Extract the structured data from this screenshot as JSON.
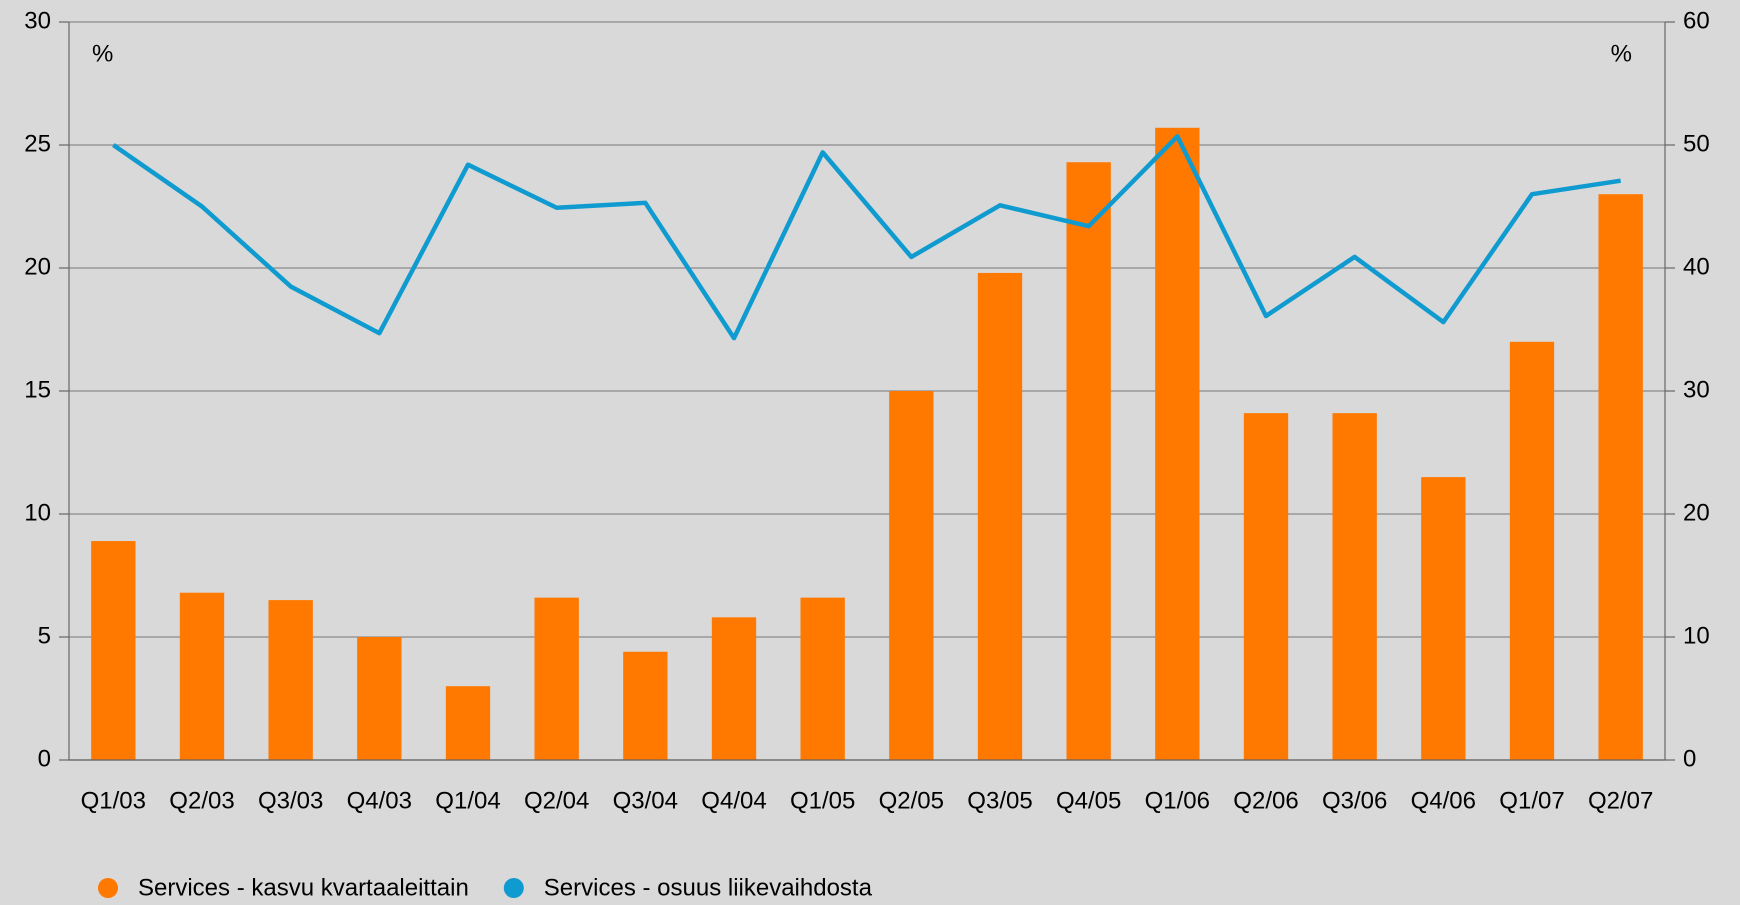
{
  "chart_data": {
    "type": "bar_line",
    "categories": [
      "Q1/03",
      "Q2/03",
      "Q3/03",
      "Q4/03",
      "Q1/04",
      "Q2/04",
      "Q3/04",
      "Q4/04",
      "Q1/05",
      "Q2/05",
      "Q3/05",
      "Q4/05",
      "Q1/06",
      "Q2/06",
      "Q3/06",
      "Q4/06",
      "Q1/07",
      "Q2/07"
    ],
    "series": [
      {
        "name": "Services - kasvu kvartaaleittain",
        "color": "#ff7800",
        "type": "bar",
        "values": [
          8.9,
          6.8,
          6.5,
          5.0,
          3.0,
          6.6,
          4.4,
          5.8,
          6.6,
          15.0,
          19.8,
          24.3,
          25.7,
          14.1,
          14.1,
          11.5,
          17.0,
          23.0
        ]
      },
      {
        "name": "Services - osuus liikevaihdosta",
        "color": "#0f9bd0",
        "type": "line",
        "axis": "y2",
        "values": [
          50,
          45,
          38.5,
          34.7,
          48.4,
          44.9,
          45.3,
          34.3,
          49.4,
          40.9,
          45.1,
          43.4,
          50.7,
          36.1,
          40.9,
          35.6,
          46.0,
          47.1
        ]
      }
    ],
    "ylim": [
      0,
      30
    ],
    "yticks": [
      0,
      5,
      10,
      15,
      20,
      25,
      30
    ],
    "y2lim": [
      0,
      60
    ],
    "y2ticks": [
      0,
      10,
      20,
      30,
      40,
      50,
      60
    ],
    "ylabel": "%",
    "y2label": "%",
    "grid": true,
    "legend": "bottom-left"
  }
}
